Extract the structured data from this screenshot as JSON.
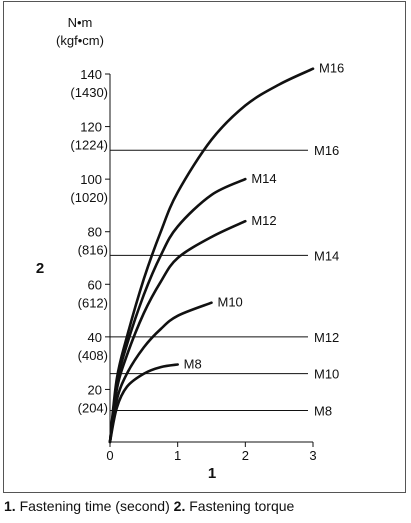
{
  "chart_data": {
    "type": "line",
    "x_axis": {
      "label": "1",
      "ticks": [
        0,
        1,
        2,
        3
      ],
      "range": [
        0,
        3
      ]
    },
    "y_axis": {
      "label": "2",
      "unit_line1": "N•m",
      "unit_line2": "(kgf•cm)",
      "range": [
        0,
        140
      ],
      "ticks": [
        {
          "value": 20,
          "primary": "20",
          "secondary": "(204)"
        },
        {
          "value": 40,
          "primary": "40",
          "secondary": "(408)"
        },
        {
          "value": 60,
          "primary": "60",
          "secondary": "(612)"
        },
        {
          "value": 80,
          "primary": "80",
          "secondary": "(816)"
        },
        {
          "value": 100,
          "primary": "100",
          "secondary": "(1020)"
        },
        {
          "value": 120,
          "primary": "120",
          "secondary": "(1224)"
        },
        {
          "value": 140,
          "primary": "140",
          "secondary": "(1430)"
        }
      ]
    },
    "curves": [
      {
        "name": "M16",
        "points": [
          [
            0,
            0
          ],
          [
            0.1,
            24
          ],
          [
            0.25,
            40
          ],
          [
            0.5,
            62
          ],
          [
            0.75,
            80
          ],
          [
            1,
            95
          ],
          [
            1.5,
            115
          ],
          [
            2,
            128
          ],
          [
            2.5,
            136
          ],
          [
            3,
            142
          ]
        ]
      },
      {
        "name": "M14",
        "points": [
          [
            0,
            0
          ],
          [
            0.1,
            22
          ],
          [
            0.25,
            37
          ],
          [
            0.5,
            56
          ],
          [
            0.75,
            71
          ],
          [
            1,
            82
          ],
          [
            1.5,
            94
          ],
          [
            2,
            100
          ]
        ]
      },
      {
        "name": "M12",
        "points": [
          [
            0,
            0
          ],
          [
            0.1,
            20
          ],
          [
            0.25,
            33
          ],
          [
            0.5,
            49
          ],
          [
            0.75,
            61
          ],
          [
            1,
            70
          ],
          [
            1.5,
            78
          ],
          [
            2,
            84
          ]
        ]
      },
      {
        "name": "M10",
        "points": [
          [
            0,
            0
          ],
          [
            0.1,
            16
          ],
          [
            0.25,
            26
          ],
          [
            0.5,
            36
          ],
          [
            0.75,
            43
          ],
          [
            1,
            48
          ],
          [
            1.5,
            53
          ]
        ]
      },
      {
        "name": "M8",
        "points": [
          [
            0,
            0
          ],
          [
            0.1,
            13
          ],
          [
            0.25,
            21
          ],
          [
            0.5,
            26
          ],
          [
            0.75,
            28.5
          ],
          [
            1,
            29.5
          ]
        ]
      }
    ],
    "reference_lines": [
      {
        "name": "M16",
        "value": 111
      },
      {
        "name": "M14",
        "value": 71
      },
      {
        "name": "M12",
        "value": 40
      },
      {
        "name": "M10",
        "value": 26
      },
      {
        "name": "M8",
        "value": 12
      }
    ]
  },
  "caption": {
    "num1": "1.",
    "text1": " Fastening time (second) ",
    "num2": "2.",
    "text2": " Fastening torque"
  }
}
